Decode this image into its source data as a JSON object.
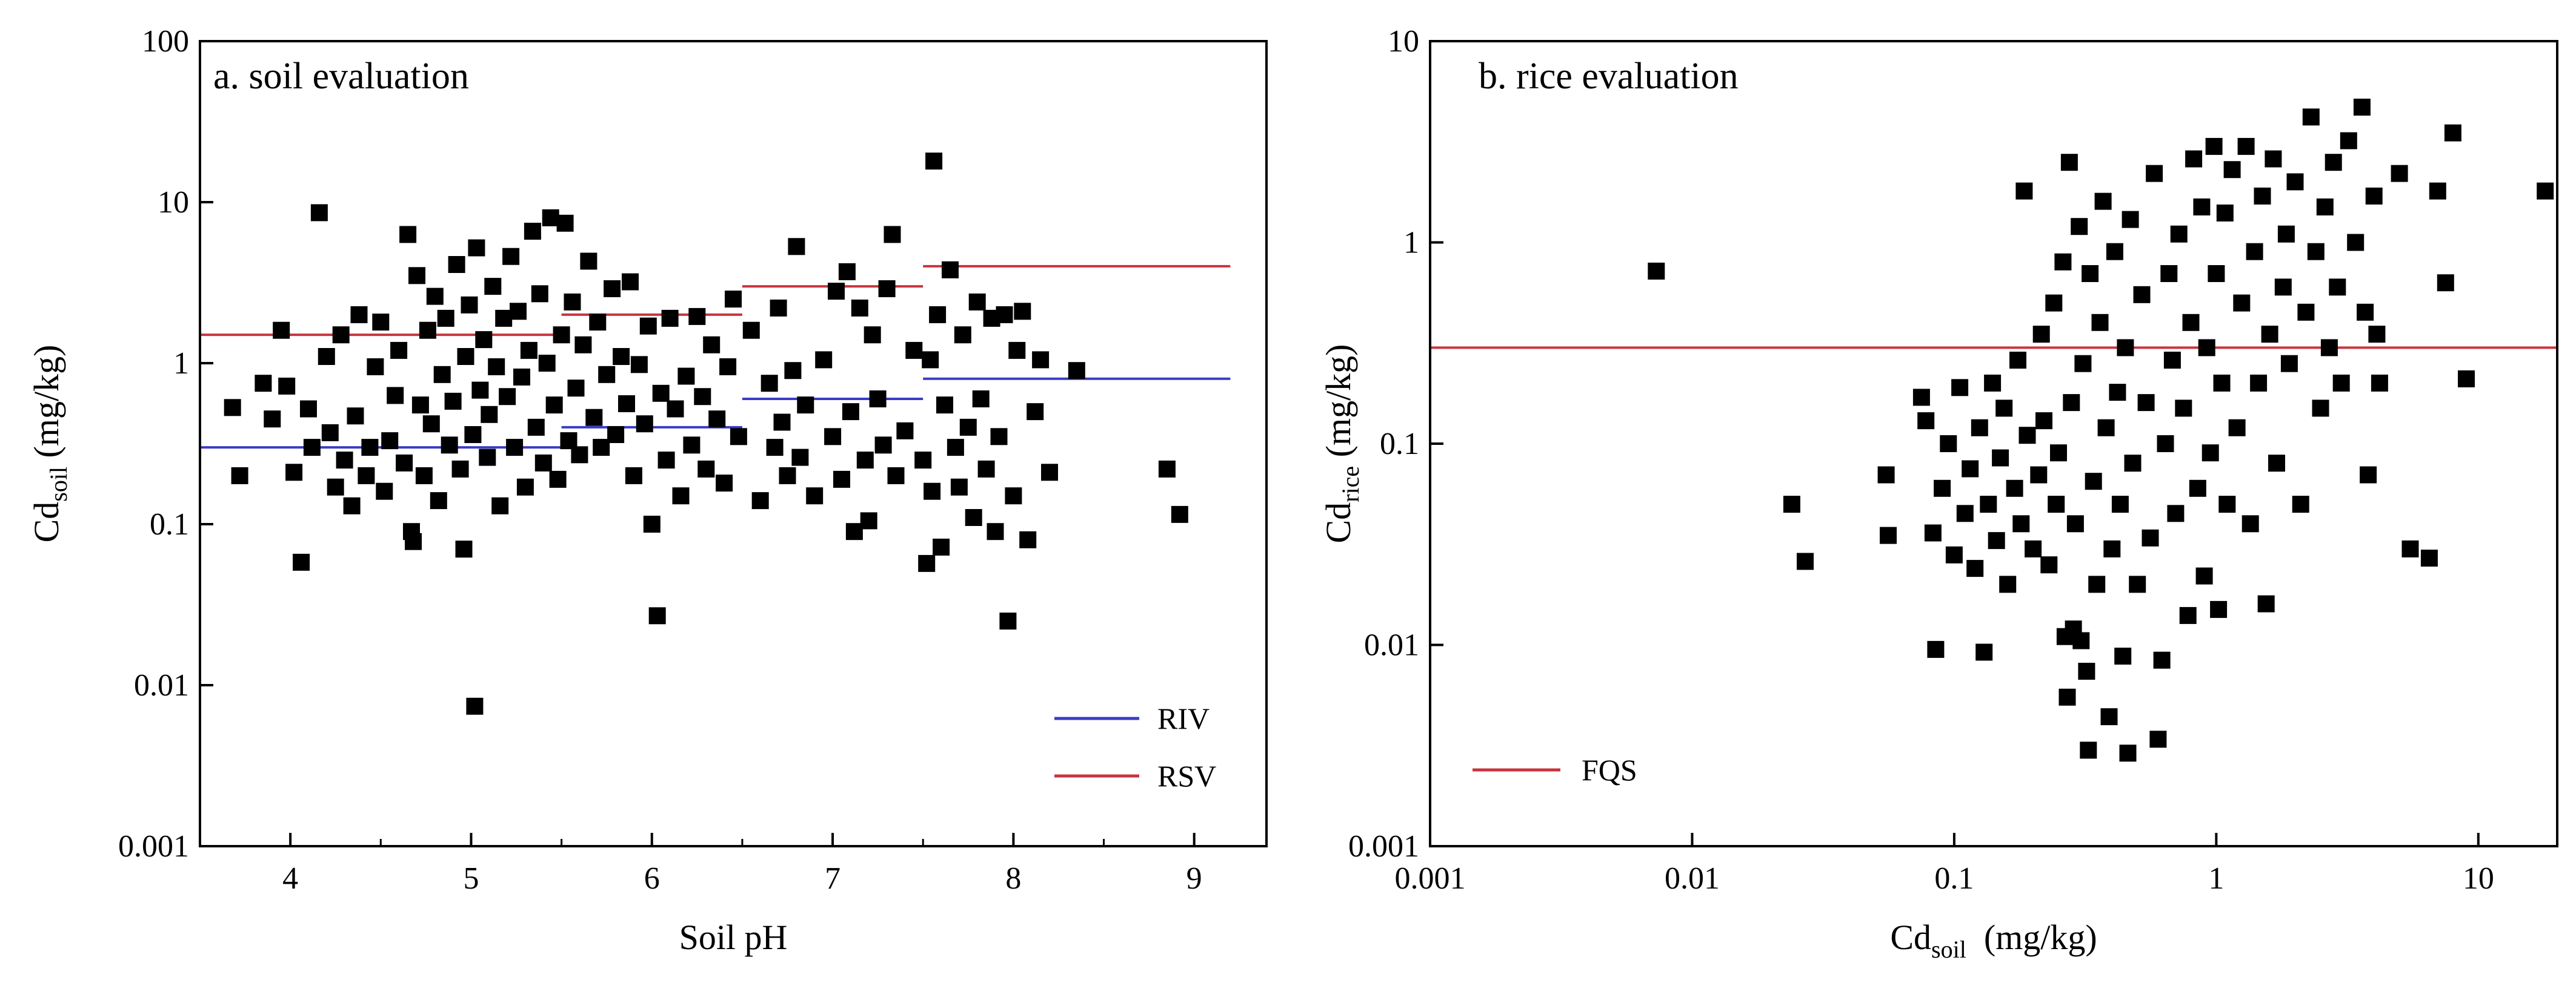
{
  "chart_data": [
    {
      "id": "a",
      "type": "scatter",
      "title": "a. soil evaluation",
      "xlabel": "Soil pH",
      "ylabel": {
        "main": "Cd",
        "sub": "soil",
        "unit": " (mg/kg)"
      },
      "x_scale": "linear",
      "y_scale": "log",
      "xlim": [
        3.5,
        9.4
      ],
      "ylim": [
        0.001,
        100
      ],
      "xticks": [
        4,
        5,
        6,
        7,
        8,
        9
      ],
      "xtick_labels": [
        "4",
        "5",
        "6",
        "7",
        "8",
        "9"
      ],
      "yticks": [
        0.001,
        0.01,
        0.1,
        1,
        10,
        100
      ],
      "ytick_labels": [
        "0.001",
        "0.01",
        "0.1",
        "1",
        "10",
        "100"
      ],
      "legend_position": "bottom-right",
      "series": [
        {
          "name": "RIV",
          "kind": "step-lines",
          "color": "#3b3bc8",
          "segments": [
            {
              "x": [
                3.5,
                5.5
              ],
              "y": 0.3
            },
            {
              "x": [
                5.5,
                6.5
              ],
              "y": 0.4
            },
            {
              "x": [
                6.5,
                7.5
              ],
              "y": 0.6
            },
            {
              "x": [
                7.5,
                9.2
              ],
              "y": 0.8
            }
          ]
        },
        {
          "name": "RSV",
          "kind": "step-lines",
          "color": "#c8343c",
          "segments": [
            {
              "x": [
                3.5,
                5.5
              ],
              "y": 1.5
            },
            {
              "x": [
                5.5,
                6.5
              ],
              "y": 2.0
            },
            {
              "x": [
                6.5,
                7.5
              ],
              "y": 3.0
            },
            {
              "x": [
                7.5,
                9.2
              ],
              "y": 4.0
            }
          ]
        }
      ],
      "points": [
        [
          3.68,
          0.53
        ],
        [
          3.72,
          0.2
        ],
        [
          3.85,
          0.75
        ],
        [
          3.9,
          0.45
        ],
        [
          3.95,
          1.6
        ],
        [
          3.98,
          0.72
        ],
        [
          4.02,
          0.21
        ],
        [
          4.06,
          0.058
        ],
        [
          4.1,
          0.52
        ],
        [
          4.12,
          0.3
        ],
        [
          4.16,
          8.6
        ],
        [
          4.2,
          1.1
        ],
        [
          4.22,
          0.37
        ],
        [
          4.25,
          0.17
        ],
        [
          4.28,
          1.5
        ],
        [
          4.3,
          0.25
        ],
        [
          4.34,
          0.13
        ],
        [
          4.36,
          0.47
        ],
        [
          4.38,
          2.0
        ],
        [
          4.42,
          0.2
        ],
        [
          4.44,
          0.3
        ],
        [
          4.47,
          0.95
        ],
        [
          4.5,
          1.8
        ],
        [
          4.52,
          0.16
        ],
        [
          4.55,
          0.33
        ],
        [
          4.58,
          0.63
        ],
        [
          4.6,
          1.2
        ],
        [
          4.63,
          0.24
        ],
        [
          4.65,
          6.3
        ],
        [
          4.67,
          0.09
        ],
        [
          4.68,
          0.078
        ],
        [
          4.7,
          3.5
        ],
        [
          4.72,
          0.55
        ],
        [
          4.74,
          0.2
        ],
        [
          4.76,
          1.6
        ],
        [
          4.78,
          0.42
        ],
        [
          4.8,
          2.6
        ],
        [
          4.82,
          0.14
        ],
        [
          4.84,
          0.85
        ],
        [
          4.86,
          1.9
        ],
        [
          4.88,
          0.31
        ],
        [
          4.9,
          0.58
        ],
        [
          4.92,
          4.1
        ],
        [
          4.94,
          0.22
        ],
        [
          4.96,
          0.07
        ],
        [
          4.97,
          1.1
        ],
        [
          4.99,
          2.3
        ],
        [
          5.01,
          0.36
        ],
        [
          5.02,
          0.0074
        ],
        [
          5.03,
          5.2
        ],
        [
          5.05,
          0.68
        ],
        [
          5.07,
          1.4
        ],
        [
          5.09,
          0.26
        ],
        [
          5.1,
          0.48
        ],
        [
          5.12,
          3.0
        ],
        [
          5.14,
          0.95
        ],
        [
          5.16,
          0.13
        ],
        [
          5.18,
          1.9
        ],
        [
          5.2,
          0.62
        ],
        [
          5.22,
          4.6
        ],
        [
          5.24,
          0.3
        ],
        [
          5.26,
          2.1
        ],
        [
          5.28,
          0.82
        ],
        [
          5.3,
          0.17
        ],
        [
          5.32,
          1.2
        ],
        [
          5.34,
          6.6
        ],
        [
          5.36,
          0.4
        ],
        [
          5.38,
          2.7
        ],
        [
          5.4,
          0.24
        ],
        [
          5.42,
          1.0
        ],
        [
          5.44,
          8.0
        ],
        [
          5.46,
          0.55
        ],
        [
          5.48,
          0.19
        ],
        [
          5.5,
          1.5
        ],
        [
          5.52,
          7.4
        ],
        [
          5.54,
          0.33
        ],
        [
          5.56,
          2.4
        ],
        [
          5.58,
          0.7
        ],
        [
          5.6,
          0.27
        ],
        [
          5.62,
          1.3
        ],
        [
          5.65,
          4.3
        ],
        [
          5.68,
          0.46
        ],
        [
          5.7,
          1.8
        ],
        [
          5.72,
          0.3
        ],
        [
          5.75,
          0.85
        ],
        [
          5.78,
          2.9
        ],
        [
          5.8,
          0.36
        ],
        [
          5.83,
          1.1
        ],
        [
          5.86,
          0.56
        ],
        [
          5.88,
          3.2
        ],
        [
          5.9,
          0.2
        ],
        [
          5.93,
          0.98
        ],
        [
          5.96,
          0.42
        ],
        [
          5.98,
          1.7
        ],
        [
          6.0,
          0.1
        ],
        [
          6.03,
          0.027
        ],
        [
          6.05,
          0.65
        ],
        [
          6.08,
          0.25
        ],
        [
          6.1,
          1.9
        ],
        [
          6.13,
          0.52
        ],
        [
          6.16,
          0.15
        ],
        [
          6.19,
          0.83
        ],
        [
          6.22,
          0.31
        ],
        [
          6.25,
          1.95
        ],
        [
          6.28,
          0.62
        ],
        [
          6.3,
          0.22
        ],
        [
          6.33,
          1.3
        ],
        [
          6.36,
          0.45
        ],
        [
          6.4,
          0.18
        ],
        [
          6.42,
          0.95
        ],
        [
          6.45,
          2.5
        ],
        [
          6.48,
          0.35
        ],
        [
          6.55,
          1.6
        ],
        [
          6.6,
          0.14
        ],
        [
          6.65,
          0.75
        ],
        [
          6.68,
          0.3
        ],
        [
          6.7,
          2.2
        ],
        [
          6.72,
          0.43
        ],
        [
          6.75,
          0.2
        ],
        [
          6.78,
          0.9
        ],
        [
          6.8,
          5.3
        ],
        [
          6.82,
          0.26
        ],
        [
          6.85,
          0.55
        ],
        [
          6.9,
          0.15
        ],
        [
          6.95,
          1.05
        ],
        [
          7.0,
          0.35
        ],
        [
          7.02,
          2.8
        ],
        [
          7.05,
          0.19
        ],
        [
          7.08,
          3.7
        ],
        [
          7.1,
          0.5
        ],
        [
          7.12,
          0.09
        ],
        [
          7.15,
          2.2
        ],
        [
          7.18,
          0.25
        ],
        [
          7.2,
          0.105
        ],
        [
          7.22,
          1.5
        ],
        [
          7.25,
          0.6
        ],
        [
          7.28,
          0.31
        ],
        [
          7.3,
          2.9
        ],
        [
          7.33,
          6.3
        ],
        [
          7.35,
          0.2
        ],
        [
          7.4,
          0.38
        ],
        [
          7.45,
          1.2
        ],
        [
          7.5,
          0.25
        ],
        [
          7.52,
          0.057
        ],
        [
          7.54,
          1.05
        ],
        [
          7.55,
          0.16
        ],
        [
          7.56,
          18
        ],
        [
          7.58,
          2.0
        ],
        [
          7.6,
          0.072
        ],
        [
          7.62,
          0.55
        ],
        [
          7.65,
          3.8
        ],
        [
          7.68,
          0.3
        ],
        [
          7.7,
          0.17
        ],
        [
          7.72,
          1.5
        ],
        [
          7.75,
          0.4
        ],
        [
          7.78,
          0.11
        ],
        [
          7.8,
          2.4
        ],
        [
          7.82,
          0.6
        ],
        [
          7.85,
          0.22
        ],
        [
          7.88,
          1.9
        ],
        [
          7.9,
          0.09
        ],
        [
          7.92,
          0.35
        ],
        [
          7.95,
          2.0
        ],
        [
          7.97,
          0.025
        ],
        [
          8.0,
          0.15
        ],
        [
          8.02,
          1.2
        ],
        [
          8.05,
          2.1
        ],
        [
          8.08,
          0.08
        ],
        [
          8.12,
          0.5
        ],
        [
          8.15,
          1.05
        ],
        [
          8.2,
          0.21
        ],
        [
          8.35,
          0.9
        ],
        [
          8.85,
          0.22
        ],
        [
          8.92,
          0.115
        ]
      ]
    },
    {
      "id": "b",
      "type": "scatter",
      "title": "b. rice evaluation",
      "xlabel": {
        "main": "Cd",
        "sub": "soil",
        "unit": "  (mg/kg)"
      },
      "ylabel": {
        "main": "Cd",
        "sub": "rice",
        "unit": " (mg/kg)"
      },
      "x_scale": "log",
      "y_scale": "log",
      "xlim": [
        0.001,
        20
      ],
      "ylim": [
        0.001,
        10
      ],
      "xticks": [
        0.001,
        0.01,
        0.1,
        1,
        10
      ],
      "xtick_labels": [
        "0.001",
        "0.01",
        "0.1",
        "1",
        "10"
      ],
      "yticks": [
        0.001,
        0.01,
        0.1,
        1,
        10
      ],
      "ytick_labels": [
        "0.001",
        "0.01",
        "0.1",
        "1",
        "10"
      ],
      "legend_position": "bottom-left",
      "series": [
        {
          "name": "FQS",
          "kind": "hline",
          "color": "#c8343c",
          "segments": [
            {
              "x": [
                0.001,
                20
              ],
              "y": 0.3
            }
          ]
        }
      ],
      "points": [
        [
          0.0073,
          0.72
        ],
        [
          0.024,
          0.05
        ],
        [
          0.027,
          0.026
        ],
        [
          0.055,
          0.07
        ],
        [
          0.056,
          0.035
        ],
        [
          0.075,
          0.17
        ],
        [
          0.078,
          0.13
        ],
        [
          0.083,
          0.036
        ],
        [
          0.085,
          0.0095
        ],
        [
          0.09,
          0.06
        ],
        [
          0.095,
          0.1
        ],
        [
          0.1,
          0.028
        ],
        [
          0.105,
          0.19
        ],
        [
          0.11,
          0.045
        ],
        [
          0.115,
          0.075
        ],
        [
          0.12,
          0.024
        ],
        [
          0.125,
          0.12
        ],
        [
          0.13,
          0.0092
        ],
        [
          0.135,
          0.05
        ],
        [
          0.14,
          0.2
        ],
        [
          0.145,
          0.033
        ],
        [
          0.15,
          0.085
        ],
        [
          0.155,
          0.15
        ],
        [
          0.16,
          0.02
        ],
        [
          0.17,
          0.06
        ],
        [
          0.175,
          0.26
        ],
        [
          0.18,
          0.04
        ],
        [
          0.185,
          1.8
        ],
        [
          0.19,
          0.11
        ],
        [
          0.2,
          0.03
        ],
        [
          0.21,
          0.07
        ],
        [
          0.215,
          0.35
        ],
        [
          0.22,
          0.13
        ],
        [
          0.23,
          0.025
        ],
        [
          0.24,
          0.5
        ],
        [
          0.245,
          0.05
        ],
        [
          0.25,
          0.09
        ],
        [
          0.26,
          0.8
        ],
        [
          0.265,
          0.011
        ],
        [
          0.27,
          0.0055
        ],
        [
          0.275,
          2.5
        ],
        [
          0.28,
          0.16
        ],
        [
          0.285,
          0.012
        ],
        [
          0.29,
          0.04
        ],
        [
          0.3,
          1.2
        ],
        [
          0.305,
          0.0105
        ],
        [
          0.31,
          0.25
        ],
        [
          0.32,
          0.0074
        ],
        [
          0.325,
          0.003
        ],
        [
          0.33,
          0.7
        ],
        [
          0.34,
          0.065
        ],
        [
          0.35,
          0.02
        ],
        [
          0.36,
          0.4
        ],
        [
          0.37,
          1.6
        ],
        [
          0.38,
          0.12
        ],
        [
          0.39,
          0.0044
        ],
        [
          0.4,
          0.03
        ],
        [
          0.41,
          0.9
        ],
        [
          0.42,
          0.18
        ],
        [
          0.43,
          0.05
        ],
        [
          0.44,
          0.0088
        ],
        [
          0.45,
          0.3
        ],
        [
          0.46,
          0.0029
        ],
        [
          0.47,
          1.3
        ],
        [
          0.48,
          0.08
        ],
        [
          0.5,
          0.02
        ],
        [
          0.52,
          0.55
        ],
        [
          0.54,
          0.16
        ],
        [
          0.56,
          0.034
        ],
        [
          0.58,
          2.2
        ],
        [
          0.6,
          0.0034
        ],
        [
          0.62,
          0.0084
        ],
        [
          0.64,
          0.1
        ],
        [
          0.66,
          0.7
        ],
        [
          0.68,
          0.26
        ],
        [
          0.7,
          0.045
        ],
        [
          0.72,
          1.1
        ],
        [
          0.75,
          0.15
        ],
        [
          0.78,
          0.014
        ],
        [
          0.8,
          0.4
        ],
        [
          0.82,
          2.6
        ],
        [
          0.85,
          0.06
        ],
        [
          0.88,
          1.5
        ],
        [
          0.9,
          0.022
        ],
        [
          0.92,
          0.3
        ],
        [
          0.95,
          0.09
        ],
        [
          0.98,
          3.0
        ],
        [
          1.0,
          0.7
        ],
        [
          1.02,
          0.015
        ],
        [
          1.05,
          0.2
        ],
        [
          1.08,
          1.4
        ],
        [
          1.1,
          0.05
        ],
        [
          1.15,
          2.3
        ],
        [
          1.2,
          0.12
        ],
        [
          1.25,
          0.5
        ],
        [
          1.3,
          3.0
        ],
        [
          1.35,
          0.04
        ],
        [
          1.4,
          0.9
        ],
        [
          1.45,
          0.2
        ],
        [
          1.5,
          1.7
        ],
        [
          1.55,
          0.016
        ],
        [
          1.6,
          0.35
        ],
        [
          1.65,
          2.6
        ],
        [
          1.7,
          0.08
        ],
        [
          1.8,
          0.6
        ],
        [
          1.85,
          1.1
        ],
        [
          1.9,
          0.25
        ],
        [
          2.0,
          2.0
        ],
        [
          2.1,
          0.05
        ],
        [
          2.2,
          0.45
        ],
        [
          2.3,
          4.2
        ],
        [
          2.4,
          0.9
        ],
        [
          2.5,
          0.15
        ],
        [
          2.6,
          1.5
        ],
        [
          2.7,
          0.3
        ],
        [
          2.8,
          2.5
        ],
        [
          2.9,
          0.6
        ],
        [
          3.0,
          0.2
        ],
        [
          3.2,
          3.2
        ],
        [
          3.4,
          1.0
        ],
        [
          3.6,
          4.7
        ],
        [
          3.7,
          0.45
        ],
        [
          3.8,
          0.07
        ],
        [
          4.0,
          1.7
        ],
        [
          4.1,
          0.35
        ],
        [
          4.2,
          0.2
        ],
        [
          5.0,
          2.2
        ],
        [
          5.5,
          0.03
        ],
        [
          6.5,
          0.027
        ],
        [
          7.0,
          1.8
        ],
        [
          7.5,
          0.63
        ],
        [
          8.0,
          3.5
        ],
        [
          9.0,
          0.21
        ],
        [
          18.0,
          1.8
        ]
      ]
    }
  ]
}
